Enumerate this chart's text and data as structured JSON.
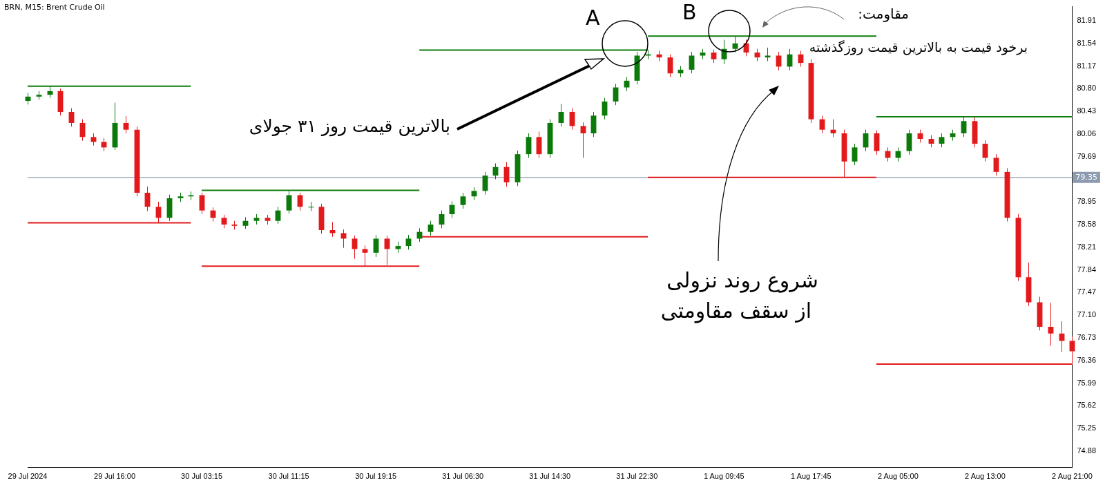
{
  "chart_data": {
    "type": "candlestick",
    "title": "BRN, M15: Brent Crude Oil",
    "categories": [
      "29 Jul 2024",
      null,
      null,
      null,
      null,
      null,
      null,
      null,
      "29 Jul 16:00",
      null,
      null,
      null,
      null,
      null,
      null,
      null,
      "30 Jul 03:15",
      null,
      null,
      null,
      null,
      null,
      null,
      null,
      "30 Jul 11:15",
      null,
      null,
      null,
      null,
      null,
      null,
      null,
      "30 Jul 19:15",
      null,
      null,
      null,
      null,
      null,
      null,
      null,
      "31 Jul 06:30",
      null,
      null,
      null,
      null,
      null,
      null,
      null,
      "31 Jul 14:30",
      null,
      null,
      null,
      null,
      null,
      null,
      null,
      "31 Jul 22:30",
      null,
      null,
      null,
      null,
      null,
      null,
      null,
      "1 Aug 09:45",
      null,
      null,
      null,
      null,
      null,
      null,
      null,
      "1 Aug 17:45",
      null,
      null,
      null,
      null,
      null,
      null,
      null,
      "2 Aug 05:00",
      null,
      null,
      null,
      null,
      null,
      null,
      null,
      "2 Aug 13:00",
      null,
      null,
      null,
      null,
      null,
      null,
      null,
      "2 Aug 21:00"
    ],
    "ohlc": [
      [
        80.6,
        80.73,
        80.54,
        80.67
      ],
      [
        80.67,
        80.76,
        80.62,
        80.7
      ],
      [
        80.7,
        80.84,
        80.65,
        80.76
      ],
      [
        80.76,
        80.8,
        80.36,
        80.42
      ],
      [
        80.42,
        80.48,
        80.18,
        80.24
      ],
      [
        80.24,
        80.3,
        79.95,
        80.01
      ],
      [
        80.01,
        80.07,
        79.87,
        79.93
      ],
      [
        79.93,
        79.99,
        79.78,
        79.84
      ],
      [
        79.84,
        80.57,
        79.8,
        80.24
      ],
      [
        80.24,
        80.35,
        80.07,
        80.13
      ],
      [
        80.13,
        80.18,
        79.04,
        79.1
      ],
      [
        79.1,
        79.2,
        78.8,
        78.87
      ],
      [
        78.87,
        78.95,
        78.61,
        78.69
      ],
      [
        78.69,
        79.07,
        78.64,
        79.01
      ],
      [
        79.01,
        79.1,
        78.95,
        79.04
      ],
      [
        79.04,
        79.12,
        78.98,
        79.06
      ],
      [
        79.06,
        79.1,
        78.75,
        78.81
      ],
      [
        78.81,
        78.86,
        78.63,
        78.69
      ],
      [
        78.69,
        78.74,
        78.52,
        78.58
      ],
      [
        78.58,
        78.64,
        78.5,
        78.56
      ],
      [
        78.56,
        78.7,
        78.51,
        78.64
      ],
      [
        78.64,
        78.75,
        78.58,
        78.69
      ],
      [
        78.69,
        78.74,
        78.58,
        78.64
      ],
      [
        78.64,
        78.87,
        78.59,
        78.81
      ],
      [
        78.81,
        79.14,
        78.76,
        79.06
      ],
      [
        79.06,
        79.1,
        78.81,
        78.87
      ],
      [
        78.87,
        78.95,
        78.8,
        78.87
      ],
      [
        78.87,
        78.92,
        78.43,
        78.49
      ],
      [
        78.49,
        78.62,
        78.38,
        78.44
      ],
      [
        78.44,
        78.5,
        78.2,
        78.35
      ],
      [
        78.35,
        78.4,
        78.02,
        78.18
      ],
      [
        78.18,
        78.24,
        77.9,
        78.12
      ],
      [
        78.12,
        78.41,
        78.05,
        78.35
      ],
      [
        78.35,
        78.4,
        77.92,
        78.18
      ],
      [
        78.18,
        78.3,
        78.12,
        78.23
      ],
      [
        78.23,
        78.41,
        78.17,
        78.35
      ],
      [
        78.35,
        78.52,
        78.3,
        78.46
      ],
      [
        78.46,
        78.64,
        78.4,
        78.58
      ],
      [
        78.58,
        78.81,
        78.52,
        78.75
      ],
      [
        78.75,
        78.96,
        78.69,
        78.9
      ],
      [
        78.9,
        79.1,
        78.84,
        79.04
      ],
      [
        79.04,
        79.19,
        78.98,
        79.13
      ],
      [
        79.13,
        79.44,
        79.07,
        79.38
      ],
      [
        79.38,
        79.58,
        79.32,
        79.52
      ],
      [
        79.52,
        79.6,
        79.2,
        79.27
      ],
      [
        79.27,
        79.79,
        79.21,
        79.73
      ],
      [
        79.73,
        80.07,
        79.67,
        80.01
      ],
      [
        80.01,
        80.1,
        79.67,
        79.73
      ],
      [
        79.73,
        80.3,
        79.67,
        80.24
      ],
      [
        80.24,
        80.55,
        80.18,
        80.42
      ],
      [
        80.42,
        80.48,
        80.13,
        80.19
      ],
      [
        80.19,
        80.25,
        79.67,
        80.07
      ],
      [
        80.07,
        80.42,
        80.01,
        80.36
      ],
      [
        80.36,
        80.65,
        80.3,
        80.59
      ],
      [
        80.59,
        80.88,
        80.53,
        80.82
      ],
      [
        80.82,
        80.99,
        80.76,
        80.93
      ],
      [
        80.93,
        81.4,
        80.87,
        81.34
      ],
      [
        81.34,
        81.43,
        81.28,
        81.36
      ],
      [
        81.36,
        81.42,
        81.25,
        81.31
      ],
      [
        81.31,
        81.36,
        80.99,
        81.05
      ],
      [
        81.05,
        81.17,
        80.99,
        81.11
      ],
      [
        81.11,
        81.4,
        81.05,
        81.34
      ],
      [
        81.34,
        81.45,
        81.28,
        81.39
      ],
      [
        81.39,
        81.44,
        81.22,
        81.28
      ],
      [
        81.28,
        81.6,
        81.2,
        81.45
      ],
      [
        81.45,
        81.66,
        81.39,
        81.54
      ],
      [
        81.54,
        81.6,
        81.33,
        81.39
      ],
      [
        81.39,
        81.45,
        81.25,
        81.31
      ],
      [
        81.31,
        81.47,
        81.25,
        81.34
      ],
      [
        81.34,
        81.4,
        81.1,
        81.16
      ],
      [
        81.16,
        81.45,
        81.1,
        81.36
      ],
      [
        81.36,
        81.42,
        81.16,
        81.22
      ],
      [
        81.22,
        81.28,
        80.24,
        80.3
      ],
      [
        80.3,
        80.36,
        80.07,
        80.13
      ],
      [
        80.13,
        80.3,
        80.01,
        80.07
      ],
      [
        80.07,
        80.13,
        79.35,
        79.61
      ],
      [
        79.61,
        79.9,
        79.55,
        79.84
      ],
      [
        79.84,
        80.13,
        79.78,
        80.07
      ],
      [
        80.07,
        80.12,
        79.72,
        79.78
      ],
      [
        79.78,
        79.84,
        79.61,
        79.67
      ],
      [
        79.67,
        79.84,
        79.61,
        79.78
      ],
      [
        79.78,
        80.13,
        79.72,
        80.07
      ],
      [
        80.07,
        80.13,
        79.92,
        79.98
      ],
      [
        79.98,
        80.04,
        79.84,
        79.9
      ],
      [
        79.9,
        80.07,
        79.84,
        80.01
      ],
      [
        80.01,
        80.13,
        79.95,
        80.07
      ],
      [
        80.07,
        80.34,
        80.01,
        80.27
      ],
      [
        80.27,
        80.33,
        79.84,
        79.9
      ],
      [
        79.9,
        79.96,
        79.61,
        79.67
      ],
      [
        79.67,
        79.73,
        79.38,
        79.44
      ],
      [
        79.44,
        79.5,
        78.63,
        78.69
      ],
      [
        78.69,
        78.75,
        77.66,
        77.72
      ],
      [
        77.72,
        77.96,
        77.25,
        77.31
      ],
      [
        77.31,
        77.4,
        76.85,
        76.91
      ],
      [
        76.91,
        77.3,
        76.6,
        76.8
      ],
      [
        76.8,
        77.0,
        76.5,
        76.68
      ],
      [
        76.68,
        76.75,
        76.3,
        76.51
      ]
    ],
    "colors": [
      "#0b7a0b",
      "#0b7a0b",
      "#0b7a0b",
      "#e31a1c",
      "#e31a1c",
      "#e31a1c",
      "#e31a1c",
      "#e31a1c",
      "#0b7a0b",
      "#e31a1c",
      "#e31a1c",
      "#e31a1c",
      "#e31a1c",
      "#0b7a0b",
      "#0b7a0b",
      "#0b7a0b",
      "#e31a1c",
      "#e31a1c",
      "#e31a1c",
      "#e31a1c",
      "#0b7a0b",
      "#0b7a0b",
      "#e31a1c",
      "#0b7a0b",
      "#0b7a0b",
      "#e31a1c",
      "#0b7a0b",
      "#e31a1c",
      "#e31a1c",
      "#e31a1c",
      "#e31a1c",
      "#e31a1c",
      "#0b7a0b",
      "#e31a1c",
      "#0b7a0b",
      "#0b7a0b",
      "#0b7a0b",
      "#0b7a0b",
      "#0b7a0b",
      "#0b7a0b",
      "#0b7a0b",
      "#0b7a0b",
      "#0b7a0b",
      "#0b7a0b",
      "#e31a1c",
      "#0b7a0b",
      "#0b7a0b",
      "#e31a1c",
      "#0b7a0b",
      "#0b7a0b",
      "#e31a1c",
      "#e31a1c",
      "#0b7a0b",
      "#0b7a0b",
      "#0b7a0b",
      "#0b7a0b",
      "#0b7a0b",
      "#0b7a0b",
      "#e31a1c",
      "#e31a1c",
      "#0b7a0b",
      "#0b7a0b",
      "#0b7a0b",
      "#e31a1c",
      "#0b7a0b",
      "#0b7a0b",
      "#e31a1c",
      "#e31a1c",
      "#0b7a0b",
      "#e31a1c",
      "#0b7a0b",
      "#e31a1c",
      "#e31a1c",
      "#e31a1c",
      "#e31a1c",
      "#e31a1c",
      "#0b7a0b",
      "#0b7a0b",
      "#e31a1c",
      "#e31a1c",
      "#0b7a0b",
      "#0b7a0b",
      "#e31a1c",
      "#e31a1c",
      "#0b7a0b",
      "#0b7a0b",
      "#0b7a0b",
      "#e31a1c",
      "#e31a1c",
      "#e31a1c",
      "#e31a1c",
      "#e31a1c",
      "#e31a1c",
      "#e31a1c",
      "#e31a1c",
      "#e31a1c",
      "#e31a1c"
    ],
    "series": [
      {
        "type": "line",
        "color": "#0a7d0a",
        "values": [
          80.84,
          80.84,
          80.84,
          80.84,
          80.84,
          80.84,
          80.84,
          80.84,
          80.84,
          80.84,
          80.84,
          80.84,
          80.84,
          80.84,
          80.84,
          80.84,
          null,
          null,
          null,
          null,
          null,
          null,
          null,
          null,
          null,
          null,
          null,
          null,
          null,
          null,
          null,
          null,
          null,
          null,
          null,
          null,
          null,
          null,
          null,
          null,
          null,
          null,
          null,
          null,
          null,
          null,
          null,
          null,
          null,
          null,
          null,
          null,
          null,
          null,
          null,
          null,
          null,
          null,
          null,
          null,
          null,
          null,
          null,
          null,
          null,
          null,
          null,
          null,
          null,
          null,
          null,
          null,
          null,
          null,
          null,
          null,
          null,
          null,
          null,
          null,
          null,
          null,
          null,
          null,
          null,
          null,
          null,
          null,
          null,
          null,
          null,
          null,
          null,
          null,
          null,
          null,
          null
        ]
      },
      {
        "type": "line",
        "color": "#e31a1c",
        "values": [
          78.61,
          78.61,
          78.61,
          78.61,
          78.61,
          78.61,
          78.61,
          78.61,
          78.61,
          78.61,
          78.61,
          78.61,
          78.61,
          78.61,
          78.61,
          78.61,
          null,
          null,
          null,
          null,
          null,
          null,
          null,
          null,
          null,
          null,
          null,
          null,
          null,
          null,
          null,
          null,
          null,
          null,
          null,
          null,
          null,
          null,
          null,
          null,
          null,
          null,
          null,
          null,
          null,
          null,
          null,
          null,
          null,
          null,
          null,
          null,
          null,
          null,
          null,
          null,
          null,
          null,
          null,
          null,
          null,
          null,
          null,
          null,
          null,
          null,
          null,
          null,
          null,
          null,
          null,
          null,
          null,
          null,
          null,
          null,
          null,
          null,
          null,
          null,
          null,
          null,
          null,
          null,
          null,
          null,
          null,
          null,
          null,
          null,
          null,
          null,
          null,
          null,
          null,
          null,
          null
        ]
      },
      {
        "type": "line",
        "color": "#0a7d0a",
        "values": [
          null,
          null,
          null,
          null,
          null,
          null,
          null,
          null,
          null,
          null,
          null,
          null,
          null,
          null,
          null,
          null,
          79.14,
          79.14,
          79.14,
          79.14,
          79.14,
          79.14,
          79.14,
          79.14,
          79.14,
          79.14,
          79.14,
          79.14,
          79.14,
          79.14,
          79.14,
          79.14,
          79.14,
          79.14,
          79.14,
          79.14,
          79.14,
          null,
          null,
          null,
          null,
          null,
          null,
          null,
          null,
          null,
          null,
          null,
          null,
          null,
          null,
          null,
          null,
          null,
          null,
          null,
          null,
          null,
          null,
          null,
          null,
          null,
          null,
          null,
          null,
          null,
          null,
          null,
          null,
          null,
          null,
          null,
          null,
          null,
          null,
          null,
          null,
          null,
          null,
          null,
          null,
          null,
          null,
          null,
          null,
          null,
          null,
          null,
          null,
          null,
          null,
          null,
          null,
          null,
          null,
          null,
          null
        ]
      },
      {
        "type": "line",
        "color": "#e31a1c",
        "values": [
          null,
          null,
          null,
          null,
          null,
          null,
          null,
          null,
          null,
          null,
          null,
          null,
          null,
          null,
          null,
          null,
          77.9,
          77.9,
          77.9,
          77.9,
          77.9,
          77.9,
          77.9,
          77.9,
          77.9,
          77.9,
          77.9,
          77.9,
          77.9,
          77.9,
          77.9,
          77.9,
          77.9,
          77.9,
          77.9,
          77.9,
          77.9,
          null,
          null,
          null,
          null,
          null,
          null,
          null,
          null,
          null,
          null,
          null,
          null,
          null,
          null,
          null,
          null,
          null,
          null,
          null,
          null,
          null,
          null,
          null,
          null,
          null,
          null,
          null,
          null,
          null,
          null,
          null,
          null,
          null,
          null,
          null,
          null,
          null,
          null,
          null,
          null,
          null,
          null,
          null,
          null,
          null,
          null,
          null,
          null,
          null,
          null,
          null,
          null,
          null,
          null,
          null,
          null,
          null,
          null,
          null,
          null
        ]
      },
      {
        "type": "line",
        "color": "#0a7d0a",
        "values": [
          null,
          null,
          null,
          null,
          null,
          null,
          null,
          null,
          null,
          null,
          null,
          null,
          null,
          null,
          null,
          null,
          null,
          null,
          null,
          null,
          null,
          null,
          null,
          null,
          null,
          null,
          null,
          null,
          null,
          null,
          null,
          null,
          null,
          null,
          null,
          null,
          81.43,
          81.43,
          81.43,
          81.43,
          81.43,
          81.43,
          81.43,
          81.43,
          81.43,
          81.43,
          81.43,
          81.43,
          81.43,
          81.43,
          81.43,
          81.43,
          81.43,
          81.43,
          81.43,
          81.43,
          81.43,
          81.43,
          null,
          null,
          null,
          null,
          null,
          null,
          null,
          null,
          null,
          null,
          null,
          null,
          null,
          null,
          null,
          null,
          null,
          null,
          null,
          null,
          null,
          null,
          null,
          null,
          null,
          null,
          null,
          null,
          null,
          null,
          null,
          null,
          null,
          null,
          null,
          null,
          null,
          null,
          null
        ]
      },
      {
        "type": "line",
        "color": "#e31a1c",
        "values": [
          null,
          null,
          null,
          null,
          null,
          null,
          null,
          null,
          null,
          null,
          null,
          null,
          null,
          null,
          null,
          null,
          null,
          null,
          null,
          null,
          null,
          null,
          null,
          null,
          null,
          null,
          null,
          null,
          null,
          null,
          null,
          null,
          null,
          null,
          null,
          null,
          78.38,
          78.38,
          78.38,
          78.38,
          78.38,
          78.38,
          78.38,
          78.38,
          78.38,
          78.38,
          78.38,
          78.38,
          78.38,
          78.38,
          78.38,
          78.38,
          78.38,
          78.38,
          78.38,
          78.38,
          78.38,
          78.38,
          null,
          null,
          null,
          null,
          null,
          null,
          null,
          null,
          null,
          null,
          null,
          null,
          null,
          null,
          null,
          null,
          null,
          null,
          null,
          null,
          null,
          null,
          null,
          null,
          null,
          null,
          null,
          null,
          null,
          null,
          null,
          null,
          null,
          null,
          null,
          null,
          null,
          null,
          null
        ]
      },
      {
        "type": "line",
        "color": "#0a7d0a",
        "values": [
          null,
          null,
          null,
          null,
          null,
          null,
          null,
          null,
          null,
          null,
          null,
          null,
          null,
          null,
          null,
          null,
          null,
          null,
          null,
          null,
          null,
          null,
          null,
          null,
          null,
          null,
          null,
          null,
          null,
          null,
          null,
          null,
          null,
          null,
          null,
          null,
          null,
          null,
          null,
          null,
          null,
          null,
          null,
          null,
          null,
          null,
          null,
          null,
          null,
          null,
          null,
          null,
          null,
          null,
          null,
          null,
          null,
          81.66,
          81.66,
          81.66,
          81.66,
          81.66,
          81.66,
          81.66,
          81.66,
          81.66,
          81.66,
          81.66,
          81.66,
          81.66,
          81.66,
          81.66,
          81.66,
          81.66,
          81.66,
          81.66,
          81.66,
          81.66,
          81.66,
          null,
          null,
          null,
          null,
          null,
          null,
          null,
          null,
          null,
          null,
          null,
          null,
          null,
          null,
          null,
          null,
          null,
          null
        ]
      },
      {
        "type": "line",
        "color": "#e31a1c",
        "values": [
          null,
          null,
          null,
          null,
          null,
          null,
          null,
          null,
          null,
          null,
          null,
          null,
          null,
          null,
          null,
          null,
          null,
          null,
          null,
          null,
          null,
          null,
          null,
          null,
          null,
          null,
          null,
          null,
          null,
          null,
          null,
          null,
          null,
          null,
          null,
          null,
          null,
          null,
          null,
          null,
          null,
          null,
          null,
          null,
          null,
          null,
          null,
          null,
          null,
          null,
          null,
          null,
          null,
          null,
          null,
          null,
          null,
          79.35,
          79.35,
          79.35,
          79.35,
          79.35,
          79.35,
          79.35,
          79.35,
          79.35,
          79.35,
          79.35,
          79.35,
          79.35,
          79.35,
          79.35,
          79.35,
          79.35,
          79.35,
          79.35,
          79.35,
          79.35,
          79.35,
          null,
          null,
          null,
          null,
          null,
          null,
          null,
          null,
          null,
          null,
          null,
          null,
          null,
          null,
          null,
          null,
          null,
          null
        ]
      },
      {
        "type": "line",
        "color": "#0a7d0a",
        "values": [
          null,
          null,
          null,
          null,
          null,
          null,
          null,
          null,
          null,
          null,
          null,
          null,
          null,
          null,
          null,
          null,
          null,
          null,
          null,
          null,
          null,
          null,
          null,
          null,
          null,
          null,
          null,
          null,
          null,
          null,
          null,
          null,
          null,
          null,
          null,
          null,
          null,
          null,
          null,
          null,
          null,
          null,
          null,
          null,
          null,
          null,
          null,
          null,
          null,
          null,
          null,
          null,
          null,
          null,
          null,
          null,
          null,
          null,
          null,
          null,
          null,
          null,
          null,
          null,
          null,
          null,
          null,
          null,
          null,
          null,
          null,
          null,
          null,
          null,
          null,
          null,
          null,
          null,
          80.34,
          80.34,
          80.34,
          80.34,
          80.34,
          80.34,
          80.34,
          80.34,
          80.34,
          80.34,
          80.34,
          80.34,
          80.34,
          80.34,
          80.34,
          80.34,
          80.34,
          80.34,
          80.34
        ]
      },
      {
        "type": "line",
        "color": "#e31a1c",
        "values": [
          null,
          null,
          null,
          null,
          null,
          null,
          null,
          null,
          null,
          null,
          null,
          null,
          null,
          null,
          null,
          null,
          null,
          null,
          null,
          null,
          null,
          null,
          null,
          null,
          null,
          null,
          null,
          null,
          null,
          null,
          null,
          null,
          null,
          null,
          null,
          null,
          null,
          null,
          null,
          null,
          null,
          null,
          null,
          null,
          null,
          null,
          null,
          null,
          null,
          null,
          null,
          null,
          null,
          null,
          null,
          null,
          null,
          null,
          null,
          null,
          null,
          null,
          null,
          null,
          null,
          null,
          null,
          null,
          null,
          null,
          null,
          null,
          null,
          null,
          null,
          null,
          null,
          null,
          76.3,
          76.3,
          76.3,
          76.3,
          76.3,
          76.3,
          76.3,
          76.3,
          76.3,
          76.3,
          76.3,
          76.3,
          76.3,
          76.3,
          76.3,
          76.3,
          76.3,
          76.3,
          76.3
        ]
      }
    ],
    "marker": "none",
    "ylim": [
      74.61,
      82.14
    ],
    "yticks": [
      {
        "value": 81.91,
        "label": "81.91"
      },
      {
        "value": 81.54,
        "label": "81.54"
      },
      {
        "value": 81.17,
        "label": "81.17"
      },
      {
        "value": 80.8,
        "label": "80.80"
      },
      {
        "value": 80.43,
        "label": "80.43"
      },
      {
        "value": 80.06,
        "label": "80.06"
      },
      {
        "value": 79.69,
        "label": "79.69"
      },
      {
        "value": 78.95,
        "label": "78.95"
      },
      {
        "value": 78.58,
        "label": "78.58"
      },
      {
        "value": 78.21,
        "label": "78.21"
      },
      {
        "value": 77.84,
        "label": "77.84"
      },
      {
        "value": 77.47,
        "label": "77.47"
      },
      {
        "value": 77.1,
        "label": "77.10"
      },
      {
        "value": 76.73,
        "label": "76.73"
      },
      {
        "value": 76.36,
        "label": "76.36"
      },
      {
        "value": 75.99,
        "label": "75.99"
      },
      {
        "value": 75.62,
        "label": "75.62"
      },
      {
        "value": 75.25,
        "label": "75.25"
      },
      {
        "value": 74.88,
        "label": "74.88"
      }
    ],
    "ref_lines": [
      {
        "axis": "y",
        "value": 79.35,
        "label": "79.35",
        "color": "#8c9bb0"
      }
    ],
    "annotations": [
      "A",
      "B",
      "بالاترین قیمت روز ۳۱ جولای",
      "مقاومت:",
      "برخود قیمت به بالاترین قیمت روزگذشته",
      "شروع روند نزولی",
      "از سقف مقاومتی"
    ]
  }
}
